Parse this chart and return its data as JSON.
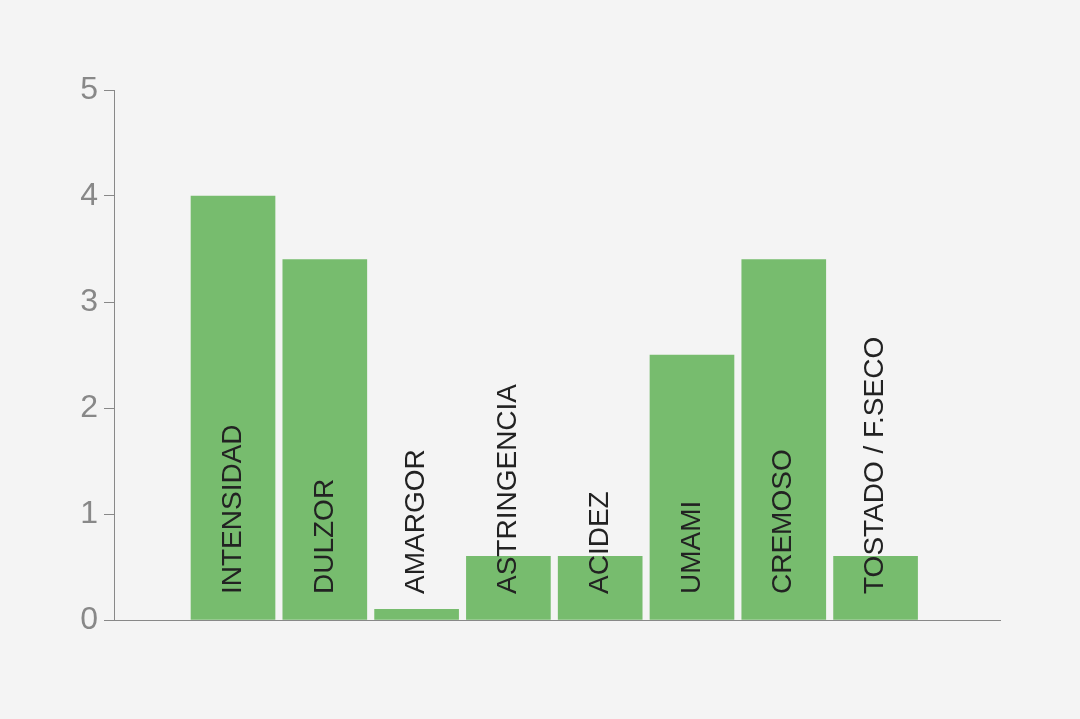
{
  "chart_data": {
    "type": "bar",
    "categories": [
      "INTENSIDAD",
      "DULZOR",
      "AMARGOR",
      "ASTRINGENCIA",
      "ACIDEZ",
      "UMAMI",
      "CREMOSO",
      "TOSTADO / F.SECO"
    ],
    "values": [
      4,
      3.4,
      0.1,
      0.6,
      0.6,
      2.5,
      3.4,
      0.6
    ],
    "color": "#77bc6e",
    "ylim": [
      0,
      5
    ],
    "yticks": [
      0,
      1,
      2,
      3,
      4,
      5
    ],
    "grid": false,
    "legend": false
  }
}
